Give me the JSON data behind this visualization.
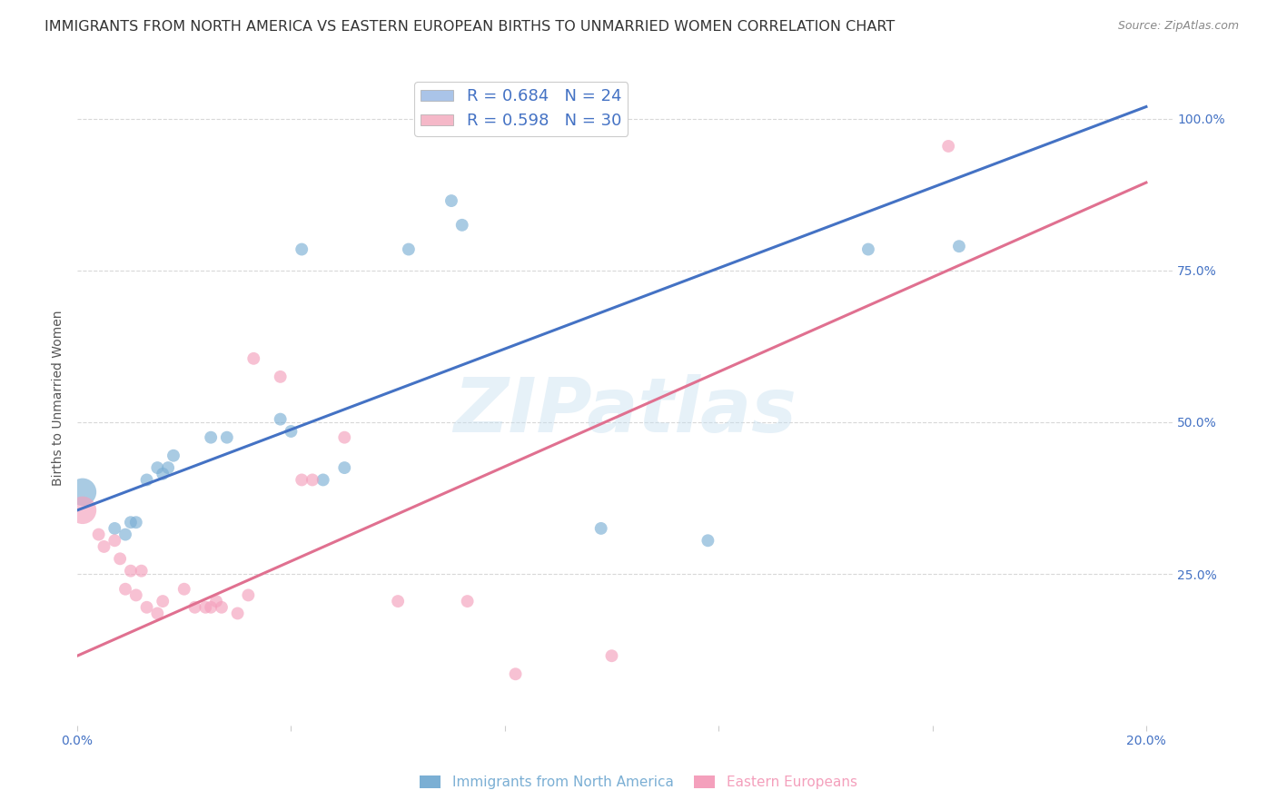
{
  "title": "IMMIGRANTS FROM NORTH AMERICA VS EASTERN EUROPEAN BIRTHS TO UNMARRIED WOMEN CORRELATION CHART",
  "source": "Source: ZipAtlas.com",
  "ylabel": "Births to Unmarried Women",
  "legend1_label": "R = 0.684   N = 24",
  "legend2_label": "R = 0.598   N = 30",
  "legend_series1_color": "#aac4e8",
  "legend_series2_color": "#f5b8c8",
  "watermark": "ZIPatlas",
  "blue_scatter": [
    [
      0.001,
      0.385
    ],
    [
      0.007,
      0.325
    ],
    [
      0.009,
      0.315
    ],
    [
      0.01,
      0.335
    ],
    [
      0.011,
      0.335
    ],
    [
      0.013,
      0.405
    ],
    [
      0.015,
      0.425
    ],
    [
      0.016,
      0.415
    ],
    [
      0.017,
      0.425
    ],
    [
      0.018,
      0.445
    ],
    [
      0.025,
      0.475
    ],
    [
      0.028,
      0.475
    ],
    [
      0.038,
      0.505
    ],
    [
      0.04,
      0.485
    ],
    [
      0.042,
      0.785
    ],
    [
      0.046,
      0.405
    ],
    [
      0.05,
      0.425
    ],
    [
      0.062,
      0.785
    ],
    [
      0.07,
      0.865
    ],
    [
      0.072,
      0.825
    ],
    [
      0.098,
      0.325
    ],
    [
      0.118,
      0.305
    ],
    [
      0.148,
      0.785
    ],
    [
      0.165,
      0.79
    ]
  ],
  "pink_scatter": [
    [
      0.001,
      0.355
    ],
    [
      0.004,
      0.315
    ],
    [
      0.005,
      0.295
    ],
    [
      0.007,
      0.305
    ],
    [
      0.008,
      0.275
    ],
    [
      0.009,
      0.225
    ],
    [
      0.01,
      0.255
    ],
    [
      0.011,
      0.215
    ],
    [
      0.012,
      0.255
    ],
    [
      0.013,
      0.195
    ],
    [
      0.015,
      0.185
    ],
    [
      0.016,
      0.205
    ],
    [
      0.02,
      0.225
    ],
    [
      0.022,
      0.195
    ],
    [
      0.024,
      0.195
    ],
    [
      0.025,
      0.195
    ],
    [
      0.026,
      0.205
    ],
    [
      0.027,
      0.195
    ],
    [
      0.03,
      0.185
    ],
    [
      0.032,
      0.215
    ],
    [
      0.033,
      0.605
    ],
    [
      0.038,
      0.575
    ],
    [
      0.042,
      0.405
    ],
    [
      0.044,
      0.405
    ],
    [
      0.05,
      0.475
    ],
    [
      0.06,
      0.205
    ],
    [
      0.073,
      0.205
    ],
    [
      0.082,
      0.085
    ],
    [
      0.1,
      0.115
    ],
    [
      0.163,
      0.955
    ]
  ],
  "blue_line_x": [
    0.0,
    0.2
  ],
  "blue_line_y": [
    0.355,
    1.02
  ],
  "pink_line_x": [
    0.0,
    0.2
  ],
  "pink_line_y": [
    0.115,
    0.895
  ],
  "xlim": [
    0.0,
    0.205
  ],
  "ylim": [
    0.0,
    1.08
  ],
  "x_ticks": [
    0.0,
    0.04,
    0.08,
    0.12,
    0.16,
    0.2
  ],
  "x_tick_labels": [
    "0.0%",
    "",
    "",
    "",
    "",
    "20.0%"
  ],
  "y_tick_vals": [
    0.25,
    0.5,
    0.75,
    1.0
  ],
  "y_tick_labels": [
    "25.0%",
    "50.0%",
    "75.0%",
    "100.0%"
  ],
  "background_color": "#ffffff",
  "grid_color": "#d8d8d8",
  "blue_color": "#7bafd4",
  "pink_color": "#f4a0bc",
  "line_blue_color": "#4472c4",
  "line_pink_color": "#e07090",
  "scatter_size": 100,
  "scatter_size_big": 480,
  "title_fontsize": 11.5,
  "axis_label_fontsize": 10,
  "tick_fontsize": 10,
  "bottom_legend_blue_label": "Immigrants from North America",
  "bottom_legend_pink_label": "Eastern Europeans"
}
